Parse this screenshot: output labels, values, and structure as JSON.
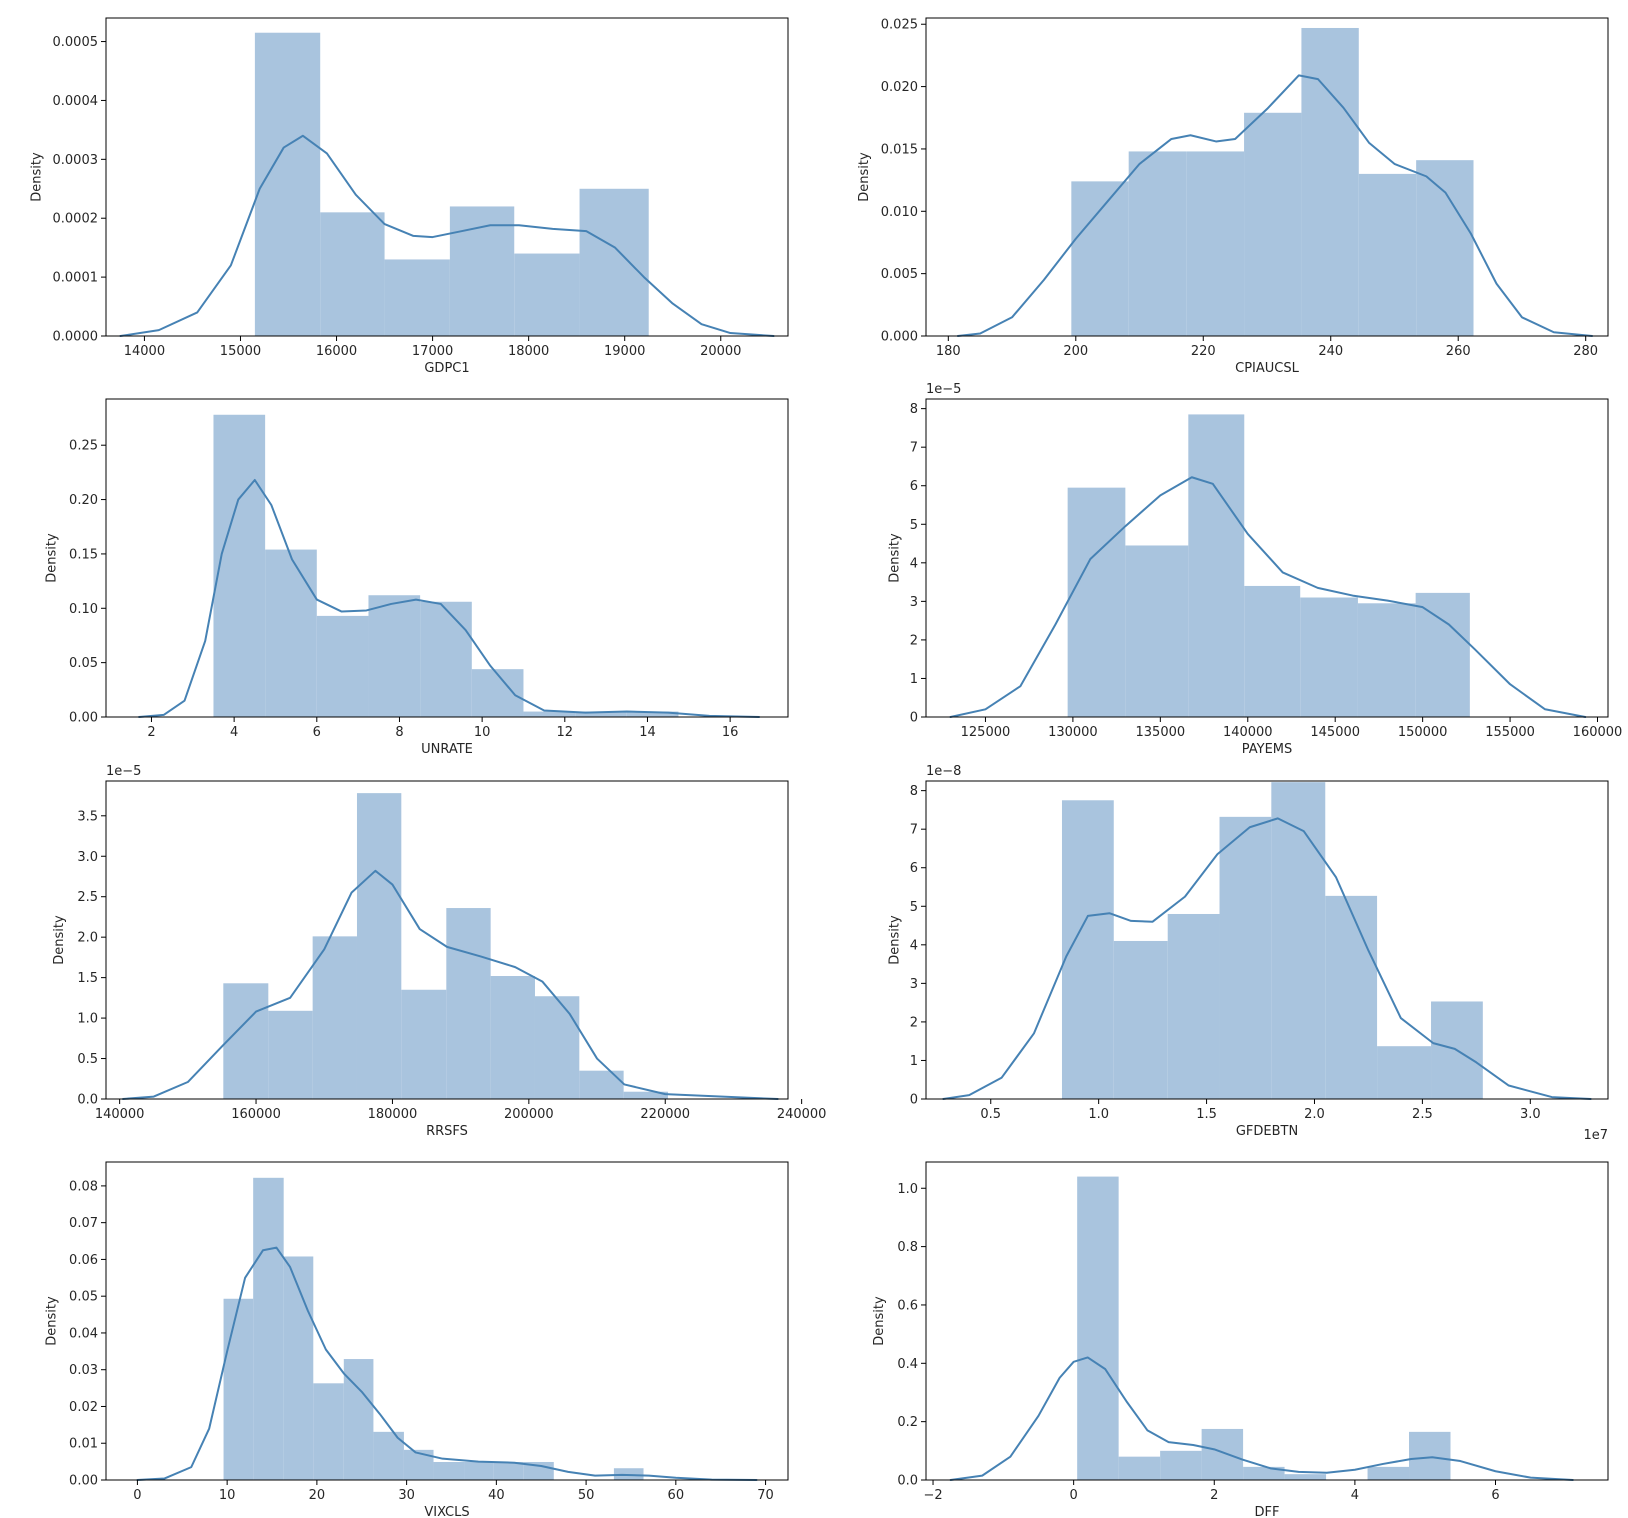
{
  "figure": {
    "bar_color": "#a9c4de",
    "line_color": "#4682b4",
    "frame_color": "#000000"
  },
  "chart_data": [
    {
      "type": "histogram+kde",
      "xlabel": "GDPC1",
      "ylabel": "Density",
      "offset_text": "",
      "x_offset_text": "",
      "xlim": [
        13600,
        20700
      ],
      "ylim": [
        0,
        0.00054
      ],
      "xticks": [
        14000,
        15000,
        16000,
        17000,
        18000,
        19000,
        20000
      ],
      "xtick_labels": [
        "14000",
        "15000",
        "16000",
        "17000",
        "18000",
        "19000",
        "20000"
      ],
      "yticks": [
        0,
        0.0001,
        0.0002,
        0.0003,
        0.0004,
        0.0005
      ],
      "ytick_labels": [
        "0.0000",
        "0.0001",
        "0.0002",
        "0.0003",
        "0.0004",
        "0.0005"
      ],
      "bin_edges": [
        15150,
        15830,
        16500,
        17180,
        17850,
        18530,
        19250
      ],
      "bar_values": [
        0.000515,
        0.00021,
        0.00013,
        0.00022,
        0.00014,
        0.00025
      ],
      "kde": [
        [
          13750,
          0.0
        ],
        [
          14150,
          1e-05
        ],
        [
          14550,
          4e-05
        ],
        [
          14900,
          0.00012
        ],
        [
          15200,
          0.00025
        ],
        [
          15450,
          0.00032
        ],
        [
          15650,
          0.00034
        ],
        [
          15900,
          0.00031
        ],
        [
          16200,
          0.00024
        ],
        [
          16500,
          0.00019
        ],
        [
          16800,
          0.00017
        ],
        [
          17000,
          0.000168
        ],
        [
          17300,
          0.000178
        ],
        [
          17600,
          0.000188
        ],
        [
          17900,
          0.000188
        ],
        [
          18250,
          0.000182
        ],
        [
          18600,
          0.000178
        ],
        [
          18900,
          0.00015
        ],
        [
          19200,
          0.0001
        ],
        [
          19500,
          5.5e-05
        ],
        [
          19800,
          2e-05
        ],
        [
          20100,
          5e-06
        ],
        [
          20550,
          0.0
        ]
      ]
    },
    {
      "type": "histogram+kde",
      "xlabel": "CPIAUCSL",
      "ylabel": "Density",
      "offset_text": "",
      "x_offset_text": "",
      "xlim": [
        176.5,
        283.5
      ],
      "ylim": [
        0,
        0.0255
      ],
      "xticks": [
        180,
        200,
        220,
        240,
        260,
        280
      ],
      "xtick_labels": [
        "180",
        "200",
        "220",
        "240",
        "260",
        "280"
      ],
      "yticks": [
        0,
        0.005,
        0.01,
        0.015,
        0.02,
        0.025
      ],
      "ytick_labels": [
        "0.000",
        "0.005",
        "0.010",
        "0.015",
        "0.020",
        "0.025"
      ],
      "bin_edges": [
        199.3,
        208.3,
        217.4,
        226.4,
        235.4,
        244.4,
        253.4,
        262.4
      ],
      "bar_values": [
        0.0124,
        0.0148,
        0.0148,
        0.0179,
        0.0247,
        0.013,
        0.0141
      ],
      "kde": [
        [
          181.5,
          0.0
        ],
        [
          185,
          0.0002
        ],
        [
          190,
          0.0015
        ],
        [
          195,
          0.0045
        ],
        [
          200,
          0.0078
        ],
        [
          205,
          0.0108
        ],
        [
          210,
          0.0138
        ],
        [
          215,
          0.0158
        ],
        [
          218,
          0.0161
        ],
        [
          222,
          0.0156
        ],
        [
          225,
          0.0158
        ],
        [
          230,
          0.0182
        ],
        [
          235,
          0.0209
        ],
        [
          238,
          0.0206
        ],
        [
          242,
          0.0183
        ],
        [
          246,
          0.0155
        ],
        [
          250,
          0.0138
        ],
        [
          255,
          0.0128
        ],
        [
          258,
          0.0115
        ],
        [
          262,
          0.0082
        ],
        [
          266,
          0.0042
        ],
        [
          270,
          0.0015
        ],
        [
          275,
          0.0003
        ],
        [
          281,
          0.0
        ]
      ]
    },
    {
      "type": "histogram+kde",
      "xlabel": "UNRATE",
      "ylabel": "Density",
      "offset_text": "",
      "x_offset_text": "",
      "xlim": [
        0.9,
        17.4
      ],
      "ylim": [
        0,
        0.2925
      ],
      "xticks": [
        2,
        4,
        6,
        8,
        10,
        12,
        14,
        16
      ],
      "xtick_labels": [
        "2",
        "4",
        "6",
        "8",
        "10",
        "12",
        "14",
        "16"
      ],
      "yticks": [
        0,
        0.05,
        0.1,
        0.15,
        0.2,
        0.25
      ],
      "ytick_labels": [
        "0.00",
        "0.05",
        "0.10",
        "0.15",
        "0.20",
        "0.25"
      ],
      "bin_edges": [
        3.5,
        4.75,
        6.0,
        7.25,
        8.5,
        9.75,
        11.0,
        12.25,
        13.5,
        14.75
      ],
      "bar_values": [
        0.278,
        0.154,
        0.093,
        0.112,
        0.106,
        0.044,
        0.005,
        0.005,
        0.005
      ],
      "kde": [
        [
          1.7,
          0.0
        ],
        [
          2.3,
          0.002
        ],
        [
          2.8,
          0.015
        ],
        [
          3.3,
          0.07
        ],
        [
          3.7,
          0.15
        ],
        [
          4.1,
          0.2
        ],
        [
          4.5,
          0.218
        ],
        [
          4.9,
          0.195
        ],
        [
          5.4,
          0.145
        ],
        [
          6.0,
          0.108
        ],
        [
          6.6,
          0.097
        ],
        [
          7.2,
          0.098
        ],
        [
          7.8,
          0.104
        ],
        [
          8.4,
          0.108
        ],
        [
          9.0,
          0.104
        ],
        [
          9.6,
          0.08
        ],
        [
          10.2,
          0.047
        ],
        [
          10.8,
          0.02
        ],
        [
          11.5,
          0.006
        ],
        [
          12.5,
          0.004
        ],
        [
          13.5,
          0.005
        ],
        [
          14.5,
          0.004
        ],
        [
          15.5,
          0.001
        ],
        [
          16.7,
          0.0
        ]
      ]
    },
    {
      "type": "histogram+kde",
      "xlabel": "PAYEMS",
      "ylabel": "Density",
      "offset_text": "1e−5",
      "x_offset_text": "",
      "xlim": [
        121600,
        160600
      ],
      "ylim": [
        0,
        8.25e-05
      ],
      "xticks": [
        125000,
        130000,
        135000,
        140000,
        145000,
        150000,
        155000,
        160000
      ],
      "xtick_labels": [
        "125000",
        "130000",
        "135000",
        "140000",
        "145000",
        "150000",
        "155000",
        "160000"
      ],
      "yticks": [
        0,
        1e-05,
        2e-05,
        3e-05,
        4e-05,
        5e-05,
        6e-05,
        7e-05,
        8e-05
      ],
      "ytick_labels": [
        "0",
        "1",
        "2",
        "3",
        "4",
        "5",
        "6",
        "7",
        "8"
      ],
      "bin_edges": [
        129700,
        133000,
        136600,
        139800,
        143000,
        146300,
        149600,
        152700
      ],
      "bar_values": [
        5.95e-05,
        4.45e-05,
        7.85e-05,
        3.4e-05,
        3.1e-05,
        2.95e-05,
        3.22e-05
      ],
      "kde": [
        [
          123000,
          0.0
        ],
        [
          125000,
          2e-06
        ],
        [
          127000,
          8e-06
        ],
        [
          129000,
          2.4e-05
        ],
        [
          131000,
          4.1e-05
        ],
        [
          133000,
          4.95e-05
        ],
        [
          135000,
          5.75e-05
        ],
        [
          136800,
          6.22e-05
        ],
        [
          138000,
          6.05e-05
        ],
        [
          140000,
          4.75e-05
        ],
        [
          142000,
          3.75e-05
        ],
        [
          144000,
          3.35e-05
        ],
        [
          146000,
          3.15e-05
        ],
        [
          148000,
          3.02e-05
        ],
        [
          150000,
          2.85e-05
        ],
        [
          151500,
          2.4e-05
        ],
        [
          153000,
          1.75e-05
        ],
        [
          155000,
          8.5e-06
        ],
        [
          157000,
          2e-06
        ],
        [
          159300,
          0.0
        ]
      ]
    },
    {
      "type": "histogram+kde",
      "xlabel": "RRSFS",
      "ylabel": "Density",
      "offset_text": "1e−5",
      "x_offset_text": "",
      "xlim": [
        138000,
        238000
      ],
      "ylim": [
        0,
        3.93e-05
      ],
      "xticks": [
        140000,
        160000,
        180000,
        200000,
        220000,
        240000
      ],
      "xtick_labels": [
        "140000",
        "160000",
        "180000",
        "200000",
        "220000",
        "240000"
      ],
      "yticks": [
        0,
        5e-06,
        1e-05,
        1.5e-05,
        2e-05,
        2.5e-05,
        3e-05,
        3.5e-05
      ],
      "ytick_labels": [
        "0.0",
        "0.5",
        "1.0",
        "1.5",
        "2.0",
        "2.5",
        "3.0",
        "3.5"
      ],
      "bin_edges": [
        155200,
        161800,
        168300,
        174800,
        181300,
        187900,
        194400,
        200900,
        207400,
        213900,
        220400
      ],
      "bar_values": [
        1.43e-05,
        1.09e-05,
        2.01e-05,
        3.78e-05,
        1.35e-05,
        2.36e-05,
        1.52e-05,
        1.27e-05,
        3.5e-06,
        9e-07
      ],
      "kde": [
        [
          140500,
          0.0
        ],
        [
          145000,
          3e-07
        ],
        [
          150000,
          2.1e-06
        ],
        [
          155000,
          6.5e-06
        ],
        [
          160000,
          1.08e-05
        ],
        [
          165000,
          1.25e-05
        ],
        [
          170000,
          1.85e-05
        ],
        [
          174000,
          2.55e-05
        ],
        [
          177500,
          2.82e-05
        ],
        [
          180000,
          2.65e-05
        ],
        [
          184000,
          2.1e-05
        ],
        [
          188000,
          1.88e-05
        ],
        [
          193000,
          1.76e-05
        ],
        [
          198000,
          1.63e-05
        ],
        [
          202000,
          1.45e-05
        ],
        [
          206000,
          1.05e-05
        ],
        [
          210000,
          5e-06
        ],
        [
          214000,
          1.8e-06
        ],
        [
          220000,
          6e-07
        ],
        [
          236500,
          0.0
        ]
      ]
    },
    {
      "type": "histogram+kde",
      "xlabel": "GFDEBTN",
      "ylabel": "Density",
      "offset_text": "1e−8",
      "x_offset_text": "1e7",
      "xlim": [
        2000000,
        33600000
      ],
      "ylim": [
        0,
        8.25e-08
      ],
      "xticks": [
        5000000,
        10000000,
        15000000,
        20000000,
        25000000,
        30000000
      ],
      "xtick_labels": [
        "0.5",
        "1.0",
        "1.5",
        "2.0",
        "2.5",
        "3.0"
      ],
      "yticks": [
        0,
        1e-08,
        2e-08,
        3e-08,
        4e-08,
        5e-08,
        6e-08,
        7e-08,
        8e-08
      ],
      "ytick_labels": [
        "0",
        "1",
        "2",
        "3",
        "4",
        "5",
        "6",
        "7",
        "8"
      ],
      "bin_edges": [
        8300000,
        10700000,
        13200000,
        15600000,
        18000000,
        20500000,
        22900000,
        25400000,
        27800000
      ],
      "bar_values": [
        7.75e-08,
        4.1e-08,
        4.8e-08,
        7.32e-08,
        8.22e-08,
        5.27e-08,
        1.37e-08,
        2.53e-08
      ],
      "kde": [
        [
          2800000,
          0.0
        ],
        [
          4000000,
          1e-09
        ],
        [
          5500000,
          5.5e-09
        ],
        [
          7000000,
          1.7e-08
        ],
        [
          8500000,
          3.7e-08
        ],
        [
          9500000,
          4.75e-08
        ],
        [
          10500000,
          4.82e-08
        ],
        [
          11500000,
          4.62e-08
        ],
        [
          12500000,
          4.6e-08
        ],
        [
          14000000,
          5.25e-08
        ],
        [
          15500000,
          6.35e-08
        ],
        [
          17000000,
          7.05e-08
        ],
        [
          18300000,
          7.28e-08
        ],
        [
          19500000,
          6.95e-08
        ],
        [
          21000000,
          5.75e-08
        ],
        [
          22500000,
          3.85e-08
        ],
        [
          24000000,
          2.1e-08
        ],
        [
          25500000,
          1.45e-08
        ],
        [
          26500000,
          1.3e-08
        ],
        [
          27500000,
          9.5e-09
        ],
        [
          29000000,
          3.5e-09
        ],
        [
          31000000,
          5e-10
        ],
        [
          32800000,
          0.0
        ]
      ]
    },
    {
      "type": "histogram+kde",
      "xlabel": "VIXCLS",
      "ylabel": "Density",
      "offset_text": "",
      "x_offset_text": "",
      "xlim": [
        -3.5,
        72.5
      ],
      "ylim": [
        0,
        0.0865
      ],
      "xticks": [
        0,
        10,
        20,
        30,
        40,
        50,
        60,
        70
      ],
      "xtick_labels": [
        "0",
        "10",
        "20",
        "30",
        "40",
        "50",
        "60",
        "70"
      ],
      "yticks": [
        0,
        0.01,
        0.02,
        0.03,
        0.04,
        0.05,
        0.06,
        0.07,
        0.08
      ],
      "ytick_labels": [
        "0.00",
        "0.01",
        "0.02",
        "0.03",
        "0.04",
        "0.05",
        "0.06",
        "0.07",
        "0.08"
      ],
      "bin_edges": [
        9.6,
        12.9,
        16.3,
        19.6,
        23.0,
        26.3,
        29.7,
        33.0,
        36.4,
        39.7,
        43.0,
        46.4,
        49.7,
        53.1,
        56.4
      ],
      "bar_values": [
        0.0493,
        0.0822,
        0.0608,
        0.0263,
        0.0329,
        0.0131,
        0.0082,
        0.0049,
        0.0049,
        0.0049,
        0.0049,
        0.0,
        0.0,
        0.0032
      ],
      "kde": [
        [
          0,
          0.0
        ],
        [
          3,
          0.0004
        ],
        [
          6,
          0.0035
        ],
        [
          8,
          0.014
        ],
        [
          10,
          0.035
        ],
        [
          12,
          0.055
        ],
        [
          14,
          0.0625
        ],
        [
          15.5,
          0.0632
        ],
        [
          17,
          0.058
        ],
        [
          19,
          0.046
        ],
        [
          21,
          0.0355
        ],
        [
          23,
          0.029
        ],
        [
          25,
          0.024
        ],
        [
          27,
          0.018
        ],
        [
          29,
          0.0115
        ],
        [
          31,
          0.0075
        ],
        [
          34,
          0.0058
        ],
        [
          38,
          0.005
        ],
        [
          42,
          0.0047
        ],
        [
          45,
          0.0038
        ],
        [
          48,
          0.0022
        ],
        [
          51,
          0.0012
        ],
        [
          54,
          0.0014
        ],
        [
          57,
          0.0012
        ],
        [
          60,
          0.0006
        ],
        [
          64,
          0.0001
        ],
        [
          69,
          0.0
        ]
      ]
    },
    {
      "type": "histogram+kde",
      "xlabel": "DFF",
      "ylabel": "Density",
      "offset_text": "",
      "x_offset_text": "",
      "xlim": [
        -2.1,
        7.6
      ],
      "ylim": [
        0,
        1.09
      ],
      "xticks": [
        -2,
        0,
        2,
        4,
        6
      ],
      "xtick_labels": [
        "−2",
        "0",
        "2",
        "4",
        "6"
      ],
      "yticks": [
        0,
        0.2,
        0.4,
        0.6,
        0.8,
        1.0
      ],
      "ytick_labels": [
        "0.0",
        "0.2",
        "0.4",
        "0.6",
        "0.8",
        "1.0"
      ],
      "bin_edges": [
        0.05,
        0.64,
        1.23,
        1.82,
        2.41,
        3.0,
        3.59,
        4.18,
        4.77,
        5.36
      ],
      "bar_values": [
        1.04,
        0.08,
        0.1,
        0.175,
        0.045,
        0.02,
        0.0,
        0.045,
        0.165
      ],
      "kde": [
        [
          -1.75,
          0.0
        ],
        [
          -1.3,
          0.015
        ],
        [
          -0.9,
          0.08
        ],
        [
          -0.5,
          0.22
        ],
        [
          -0.2,
          0.35
        ],
        [
          0.0,
          0.405
        ],
        [
          0.2,
          0.42
        ],
        [
          0.45,
          0.38
        ],
        [
          0.75,
          0.27
        ],
        [
          1.05,
          0.17
        ],
        [
          1.35,
          0.13
        ],
        [
          1.7,
          0.12
        ],
        [
          2.0,
          0.105
        ],
        [
          2.4,
          0.07
        ],
        [
          2.8,
          0.04
        ],
        [
          3.2,
          0.028
        ],
        [
          3.6,
          0.025
        ],
        [
          4.0,
          0.035
        ],
        [
          4.4,
          0.055
        ],
        [
          4.8,
          0.072
        ],
        [
          5.1,
          0.078
        ],
        [
          5.5,
          0.065
        ],
        [
          6.0,
          0.03
        ],
        [
          6.5,
          0.008
        ],
        [
          7.1,
          0.0
        ]
      ]
    }
  ]
}
